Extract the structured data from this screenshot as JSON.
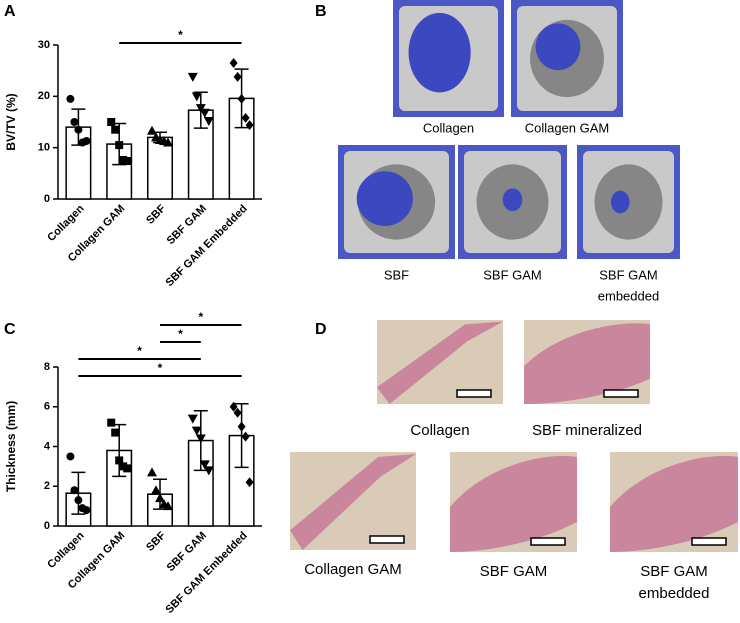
{
  "panels": [
    "A",
    "B",
    "C",
    "D"
  ],
  "chart_data": [
    {
      "type": "bar",
      "ylabel": "BV/TV (%)",
      "categories": [
        "Collagen",
        "Collagen GAM",
        "SBF",
        "SBF GAM",
        "SBF GAM Embedded"
      ],
      "values": [
        14,
        10.7,
        12,
        17.3,
        19.6
      ],
      "errors": [
        3.5,
        4,
        1,
        3.5,
        5.7
      ],
      "points": [
        [
          19.5,
          15,
          13.5,
          11,
          11.3
        ],
        [
          15,
          13.5,
          10.5,
          7.6,
          7.4
        ],
        [
          13.3,
          12,
          11.5,
          11.3,
          11
        ],
        [
          23.8,
          20,
          17.7,
          16.8,
          15.2
        ],
        [
          26.5,
          23.8,
          19.5,
          15.8,
          14.4
        ]
      ],
      "markers": [
        "circle",
        "square",
        "triangle-up",
        "triangle-down",
        "diamond"
      ],
      "color": "#ffffff",
      "ylim": [
        0,
        30
      ],
      "yticks": [
        0,
        10,
        20,
        30
      ],
      "comparisons": [
        {
          "pair": [
            1,
            4
          ],
          "label": "*"
        }
      ]
    },
    {
      "type": "bar",
      "ylabel": "Thickness (mm)",
      "categories": [
        "Collagen",
        "Collagen GAM",
        "SBF",
        "SBF GAM",
        "SBF GAM Embedded"
      ],
      "values": [
        1.65,
        3.8,
        1.6,
        4.3,
        4.55
      ],
      "errors": [
        1.05,
        1.3,
        0.75,
        1.5,
        1.6
      ],
      "points": [
        [
          3.5,
          1.8,
          1.3,
          0.9,
          0.8
        ],
        [
          5.2,
          4.7,
          3.3,
          3.0,
          2.9
        ],
        [
          2.7,
          1.8,
          1.4,
          1.1,
          1.0
        ],
        [
          5.4,
          4.8,
          4.4,
          3.1,
          2.8
        ],
        [
          6.0,
          5.7,
          5.0,
          4.5,
          2.2
        ]
      ],
      "markers": [
        "circle",
        "square",
        "triangle-up",
        "triangle-down",
        "diamond"
      ],
      "color": "#ffffff",
      "ylim": [
        0,
        8
      ],
      "yticks": [
        0,
        2,
        4,
        6,
        8
      ],
      "comparisons": [
        {
          "pair": [
            0,
            4
          ],
          "label": "*"
        },
        {
          "pair": [
            0,
            3
          ],
          "label": "*"
        },
        {
          "pair": [
            2,
            3
          ],
          "label": "*"
        },
        {
          "pair": [
            2,
            4
          ],
          "label": "*"
        }
      ]
    }
  ],
  "images_b": [
    [
      "Collagen"
    ],
    [
      "Collagen GAM"
    ],
    [
      "SBF"
    ],
    [
      "SBF GAM"
    ],
    [
      "SBF GAM",
      "embedded"
    ]
  ],
  "images_d": [
    [
      "Collagen"
    ],
    [
      "SBF mineralized"
    ],
    [
      "Collagen GAM"
    ],
    [
      "SBF GAM"
    ],
    [
      "SBF GAM",
      "embedded"
    ]
  ]
}
